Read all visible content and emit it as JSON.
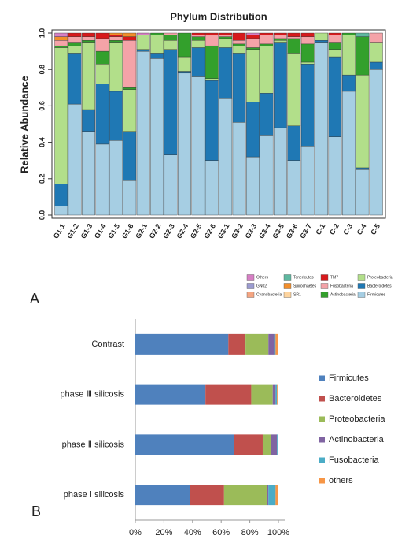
{
  "chart_data": [
    {
      "type": "stacked_bar",
      "panel": "A",
      "title": "Phylum Distribution",
      "y_label": "Relative Abundance",
      "categories": [
        "G1-1",
        "G1-2",
        "G1-3",
        "G1-4",
        "G1-5",
        "G1-6",
        "G2-1",
        "G2-2",
        "G2-3",
        "G2-4",
        "G2-5",
        "G2-6",
        "G3-1",
        "G3-2",
        "G3-3",
        "G3-4",
        "G3-5",
        "G3-6",
        "G3-7",
        "C-1",
        "C-2",
        "C-3",
        "C-4",
        "C-5"
      ],
      "ylim": [
        0,
        1
      ],
      "yticks": [
        {
          "value": 0,
          "label": "0.0"
        },
        0.2,
        0.4,
        0.6,
        0.8,
        {
          "value": 1,
          "label": "1.0"
        }
      ],
      "series": [
        {
          "name": "Others",
          "color": "#d67fc4",
          "values": [
            0.02,
            0,
            0,
            0,
            0,
            0,
            0.01,
            0,
            0,
            0,
            0,
            0,
            0,
            0,
            0.01,
            0,
            0,
            0,
            0,
            0,
            0,
            0,
            0,
            0
          ]
        },
        {
          "name": "GN02",
          "color": "#9b9bd0",
          "values": [
            0,
            0,
            0,
            0,
            0,
            0,
            0,
            0,
            0,
            0,
            0,
            0,
            0,
            0,
            0,
            0,
            0,
            0,
            0,
            0,
            0,
            0,
            0,
            0
          ]
        },
        {
          "name": "Cyanobacteria",
          "color": "#f4a582",
          "values": [
            0,
            0,
            0,
            0,
            0,
            0,
            0,
            0,
            0,
            0,
            0,
            0,
            0,
            0,
            0,
            0,
            0,
            0,
            0,
            0,
            0,
            0,
            0,
            0
          ]
        },
        {
          "name": "Tenericutes",
          "color": "#5fb8a0",
          "values": [
            0,
            0,
            0,
            0,
            0,
            0,
            0,
            0,
            0,
            0,
            0,
            0,
            0,
            0,
            0,
            0,
            0,
            0,
            0,
            0,
            0,
            0,
            0.02,
            0
          ]
        },
        {
          "name": "Spirochaetes",
          "color": "#f28e2b",
          "values": [
            0.02,
            0,
            0,
            0,
            0.01,
            0.02,
            0,
            0,
            0,
            0,
            0,
            0,
            0,
            0,
            0,
            0,
            0,
            0,
            0,
            0,
            0,
            0,
            0,
            0
          ]
        },
        {
          "name": "SR1",
          "color": "#fdd49e",
          "values": [
            0,
            0,
            0,
            0,
            0,
            0,
            0,
            0,
            0,
            0,
            0,
            0,
            0,
            0,
            0,
            0,
            0,
            0,
            0,
            0,
            0,
            0,
            0,
            0
          ]
        },
        {
          "name": "TM7",
          "color": "#d7191c",
          "values": [
            0,
            0.02,
            0.02,
            0.03,
            0.01,
            0.02,
            0,
            0,
            0,
            0,
            0.01,
            0.01,
            0.01,
            0.04,
            0.02,
            0.01,
            0.01,
            0.02,
            0.02,
            0,
            0.01,
            0,
            0,
            0
          ]
        },
        {
          "name": "Fusobacteria",
          "color": "#f4a3a8",
          "values": [
            0.03,
            0.03,
            0.02,
            0.07,
            0.02,
            0.26,
            0,
            0,
            0.01,
            0,
            0.01,
            0.06,
            0.01,
            0.02,
            0.05,
            0.05,
            0.02,
            0.01,
            0.04,
            0,
            0.04,
            0,
            0,
            0.05
          ]
        },
        {
          "name": "Actinobacteria",
          "color": "#33a02c",
          "values": [
            0.01,
            0.02,
            0.01,
            0.07,
            0.01,
            0.01,
            0,
            0.01,
            0.03,
            0.13,
            0.02,
            0.18,
            0.01,
            0.01,
            0.01,
            0.01,
            0.01,
            0.08,
            0.1,
            0,
            0.04,
            0.01,
            0.21,
            0
          ]
        },
        {
          "name": "Proteobacteria",
          "color": "#b2df8a",
          "values": [
            0.75,
            0.04,
            0.37,
            0.11,
            0.27,
            0.23,
            0.08,
            0.1,
            0.05,
            0.08,
            0.04,
            0.01,
            0.05,
            0.04,
            0.29,
            0.26,
            0.01,
            0.4,
            0.01,
            0.04,
            0.04,
            0.22,
            0.51,
            0.11
          ]
        },
        {
          "name": "Bacteroidetes",
          "color": "#1f78b4",
          "values": [
            0.12,
            0.28,
            0.12,
            0.33,
            0.27,
            0.27,
            0.01,
            0.03,
            0.58,
            0.01,
            0.16,
            0.44,
            0.28,
            0.38,
            0.3,
            0.23,
            0.47,
            0.19,
            0.45,
            0.01,
            0.44,
            0.09,
            0.01,
            0.04
          ]
        },
        {
          "name": "Firmicutes",
          "color": "#a6cee3",
          "values": [
            0.05,
            0.61,
            0.46,
            0.39,
            0.41,
            0.19,
            0.9,
            0.86,
            0.33,
            0.78,
            0.76,
            0.3,
            0.64,
            0.51,
            0.32,
            0.44,
            0.48,
            0.3,
            0.38,
            0.95,
            0.43,
            0.68,
            0.25,
            0.8
          ]
        }
      ]
    },
    {
      "type": "stacked_barh",
      "panel": "B",
      "categories": [
        "phase Ⅰ silicosis",
        "phase Ⅱ silicosis",
        "phase Ⅲ silicosis",
        "Contrast"
      ],
      "xlim": [
        0,
        100
      ],
      "xticks": [
        {
          "value": 0,
          "label": "0%"
        },
        {
          "value": 20,
          "label": "20%"
        },
        {
          "value": 40,
          "label": "40%"
        },
        {
          "value": 60,
          "label": "60%"
        },
        {
          "value": 80,
          "label": "80%"
        },
        {
          "value": 100,
          "label": "100%"
        }
      ],
      "series": [
        {
          "name": "Firmicutes",
          "color": "#4f81bd",
          "values": [
            38,
            69,
            49,
            65
          ]
        },
        {
          "name": "Bacteroidetes",
          "color": "#c0504d",
          "values": [
            24,
            20,
            32,
            12
          ]
        },
        {
          "name": "Proteobacteria",
          "color": "#9bbb59",
          "values": [
            30,
            6,
            15,
            16
          ]
        },
        {
          "name": "Actinobacteria",
          "color": "#8064a2",
          "values": [
            1,
            4,
            2,
            4
          ]
        },
        {
          "name": "Fusobacteria",
          "color": "#4bacc6",
          "values": [
            5,
            0.5,
            1,
            1
          ]
        },
        {
          "name": "others",
          "color": "#f79646",
          "values": [
            2,
            0.5,
            1,
            2
          ]
        }
      ]
    }
  ]
}
